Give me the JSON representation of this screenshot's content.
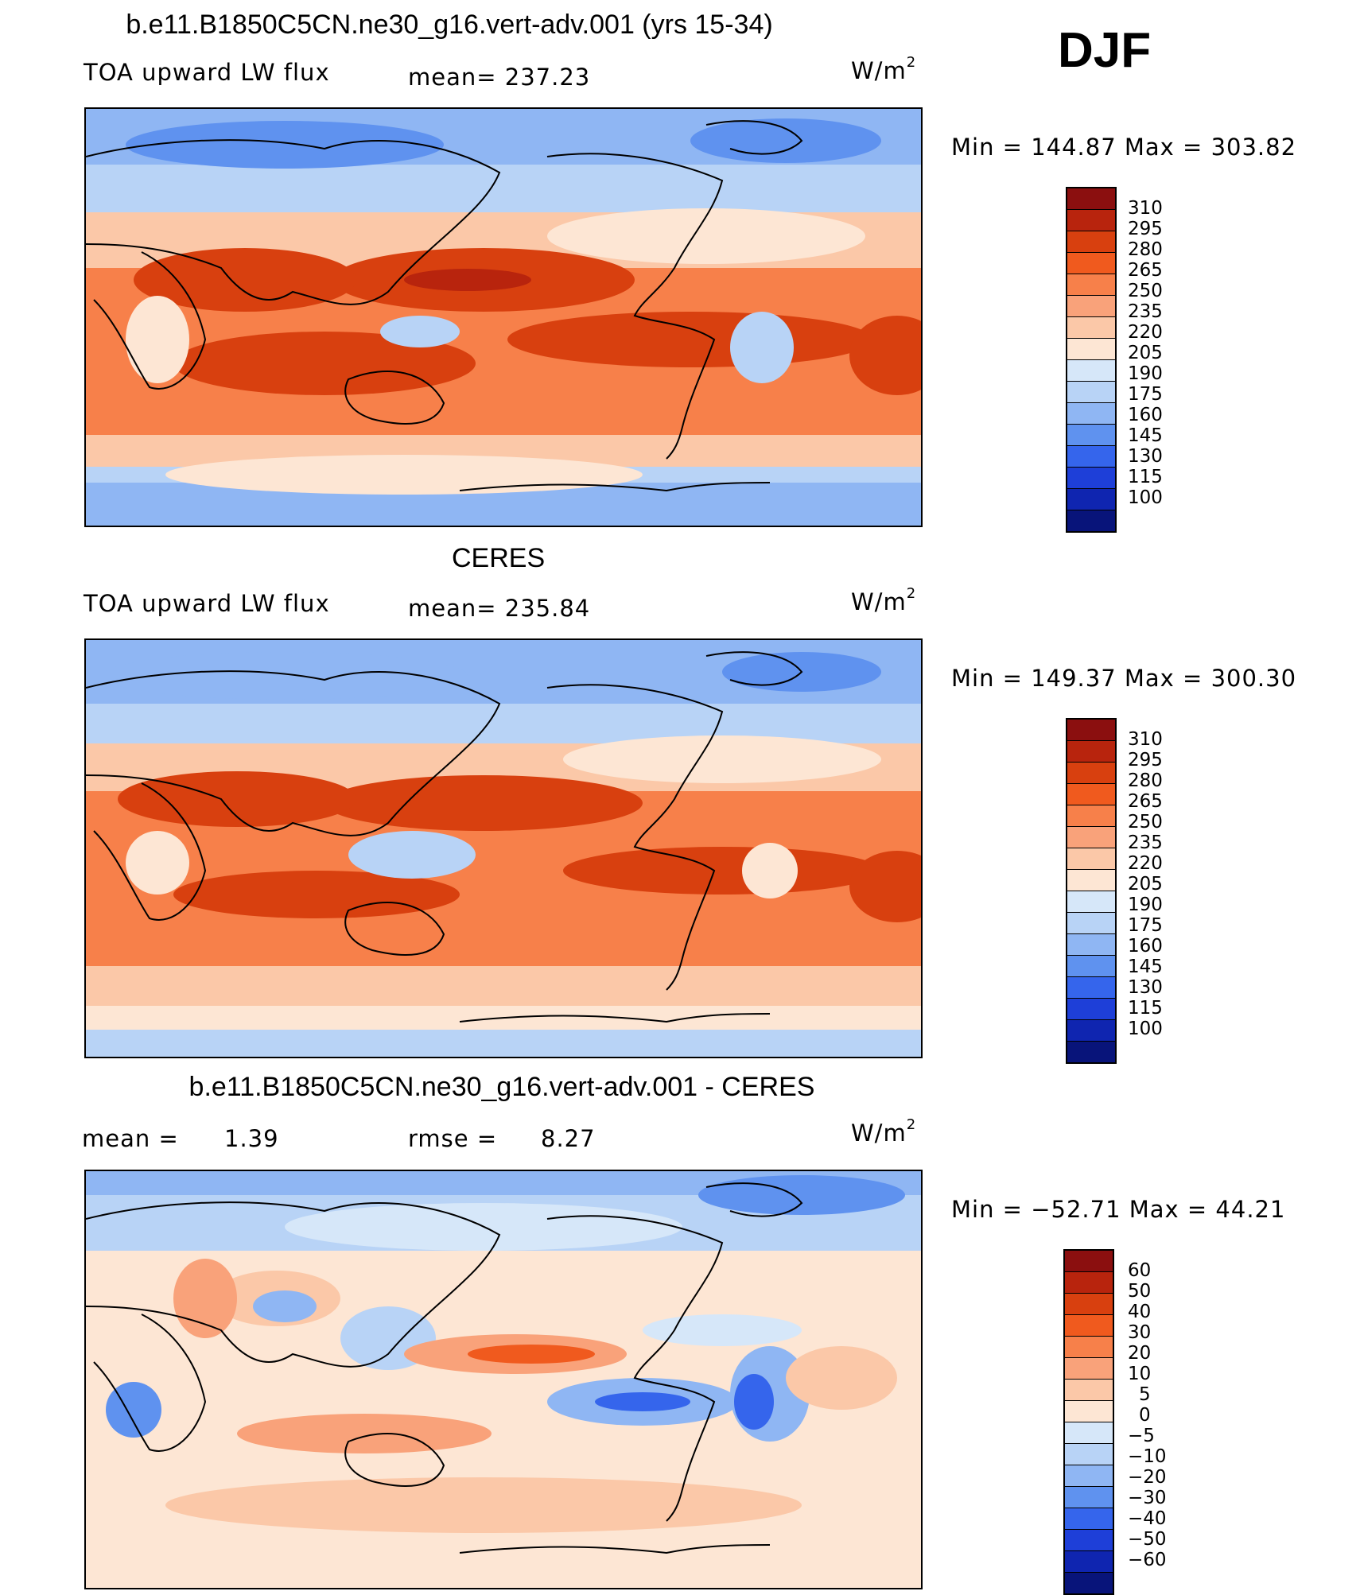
{
  "season": "DJF",
  "panels": [
    {
      "title": "b.e11.B1850C5CN.ne30_g16.vert-adv.001 (yrs 15-34)",
      "field_label": "TOA upward LW flux",
      "stat_text": "mean=  237.23",
      "units_base": "W/m",
      "units_exp": "2",
      "minmax": "Min  =  144.87  Max  =  303.82",
      "kind": "abs"
    },
    {
      "title": "CERES",
      "field_label": "TOA upward LW flux",
      "stat_text": "mean=  235.84",
      "units_base": "W/m",
      "units_exp": "2",
      "minmax": "Min  =  149.37  Max  =  300.30",
      "kind": "abs"
    },
    {
      "title": "b.e11.B1850C5CN.ne30_g16.vert-adv.001 - CERES",
      "field_label": "mean  =",
      "field_value": "1.39",
      "stat_text": "rmse  =",
      "stat_value": "8.27",
      "units_base": "W/m",
      "units_exp": "2",
      "minmax": "Min  = −52.71  Max  =    44.21",
      "kind": "diff"
    }
  ],
  "chart_data": {
    "type": "heatmap",
    "variable": "TOA upward LW flux",
    "units": "W/m2",
    "season": "DJF",
    "maps": [
      {
        "name": "b.e11.B1850C5CN.ne30_g16.vert-adv.001 (yrs 15-34)",
        "mean": 237.23,
        "min": 144.87,
        "max": 303.82
      },
      {
        "name": "CERES",
        "mean": 235.84,
        "min": 149.37,
        "max": 300.3
      },
      {
        "name": "b.e11.B1850C5CN.ne30_g16.vert-adv.001 - CERES",
        "mean": 1.39,
        "rmse": 8.27,
        "min": -52.71,
        "max": 44.21
      }
    ],
    "colorbars": {
      "abs": {
        "levels": [
          "310",
          "295",
          "280",
          "265",
          "250",
          "235",
          "220",
          "205",
          "190",
          "175",
          "160",
          "145",
          "130",
          "115",
          "100"
        ],
        "colors": [
          "#8b0f0f",
          "#b8240d",
          "#d8400f",
          "#f05a1e",
          "#f7804a",
          "#f9a27a",
          "#fbc8a8",
          "#fde6d4",
          "#d6e7f9",
          "#b8d3f6",
          "#8fb6f3",
          "#5f92ef",
          "#3565ec",
          "#1e3fd8",
          "#0f25b0",
          "#08147a"
        ]
      },
      "diff": {
        "levels": [
          "60",
          "50",
          "40",
          "30",
          "20",
          "10",
          "5",
          "0",
          "−5",
          "−10",
          "−20",
          "−30",
          "−40",
          "−50",
          "−60"
        ],
        "colors": [
          "#8b0f0f",
          "#b8240d",
          "#d8400f",
          "#f05a1e",
          "#f7804a",
          "#f9a27a",
          "#fbc8a8",
          "#fde6d4",
          "#d6e7f9",
          "#b8d3f6",
          "#8fb6f3",
          "#5f92ef",
          "#3565ec",
          "#1e3fd8",
          "#0f25b0",
          "#08147a"
        ]
      }
    }
  }
}
